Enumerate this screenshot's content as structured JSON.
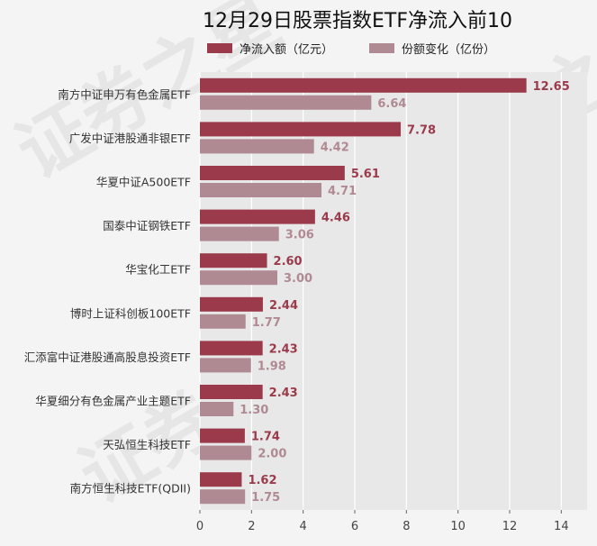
{
  "chart_data": {
    "type": "bar",
    "orientation": "horizontal",
    "title": "12月29日股票指数ETF净流入前10",
    "categories": [
      "南方中证申万有色金属ETF",
      "广发中证港股通非银ETF",
      "华夏中证A500ETF",
      "国泰中证钢铁ETF",
      "华宝化工ETF",
      "博时上证科创板100ETF",
      "汇添富中证港股通高股息投资ETF",
      "华夏细分有色金属产业主题ETF",
      "天弘恒生科技ETF",
      "南方恒生科技ETF(QDII)"
    ],
    "series": [
      {
        "name": "净流入额（亿元）",
        "color": "#9a3a4a",
        "values": [
          12.65,
          7.78,
          5.61,
          4.46,
          2.6,
          2.44,
          2.43,
          2.43,
          1.74,
          1.62
        ],
        "labels": [
          "12.65",
          "7.78",
          "5.61",
          "4.46",
          "2.60",
          "2.44",
          "2.43",
          "2.43",
          "1.74",
          "1.62"
        ]
      },
      {
        "name": "份额变化（亿份）",
        "color": "#b08a93",
        "values": [
          6.64,
          4.42,
          4.71,
          3.06,
          3.0,
          1.77,
          1.98,
          1.3,
          2.0,
          1.75
        ],
        "labels": [
          "6.64",
          "4.42",
          "4.71",
          "3.06",
          "3.00",
          "1.77",
          "1.98",
          "1.30",
          "2.00",
          "1.75"
        ]
      }
    ],
    "xlim": [
      0,
      15
    ],
    "xticks": [
      0,
      2,
      4,
      6,
      8,
      10,
      12,
      14
    ],
    "xlabel": "",
    "ylabel": "",
    "grid": true,
    "legend_position": "top"
  },
  "watermark": {
    "text": "证券之星"
  }
}
